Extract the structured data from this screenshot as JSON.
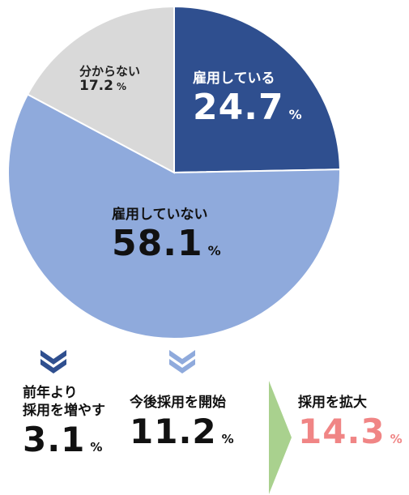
{
  "chart_data": {
    "type": "pie",
    "start_angle_deg": 0,
    "direction": "clockwise",
    "slices": [
      {
        "label": "雇用している",
        "value": 24.7,
        "unit": "%",
        "color": "#2f4f8f"
      },
      {
        "label": "雇用していない",
        "value": 58.1,
        "unit": "%",
        "color": "#8faadc"
      },
      {
        "label": "分からない",
        "value": 17.2,
        "unit": "%",
        "color": "#d9d9d9"
      }
    ]
  },
  "breakdown": {
    "increase": {
      "line1": "前年より",
      "line2": "採用を増やす",
      "value": "3.1",
      "unit": "%"
    },
    "start": {
      "label": "今後採用を開始",
      "value": "11.2",
      "unit": "%"
    },
    "expand": {
      "label": "採用を拡大",
      "value": "14.3",
      "unit": "%"
    }
  },
  "colors": {
    "chevron_dark": "#2f4f8f",
    "chevron_light": "#8faadc",
    "arrow": "#a9d18e",
    "highlight": "#f08585"
  },
  "icons": {
    "left_chevron": "double-chevron-down-icon",
    "mid_chevron": "double-chevron-down-icon",
    "arrow": "arrow-right-icon"
  }
}
